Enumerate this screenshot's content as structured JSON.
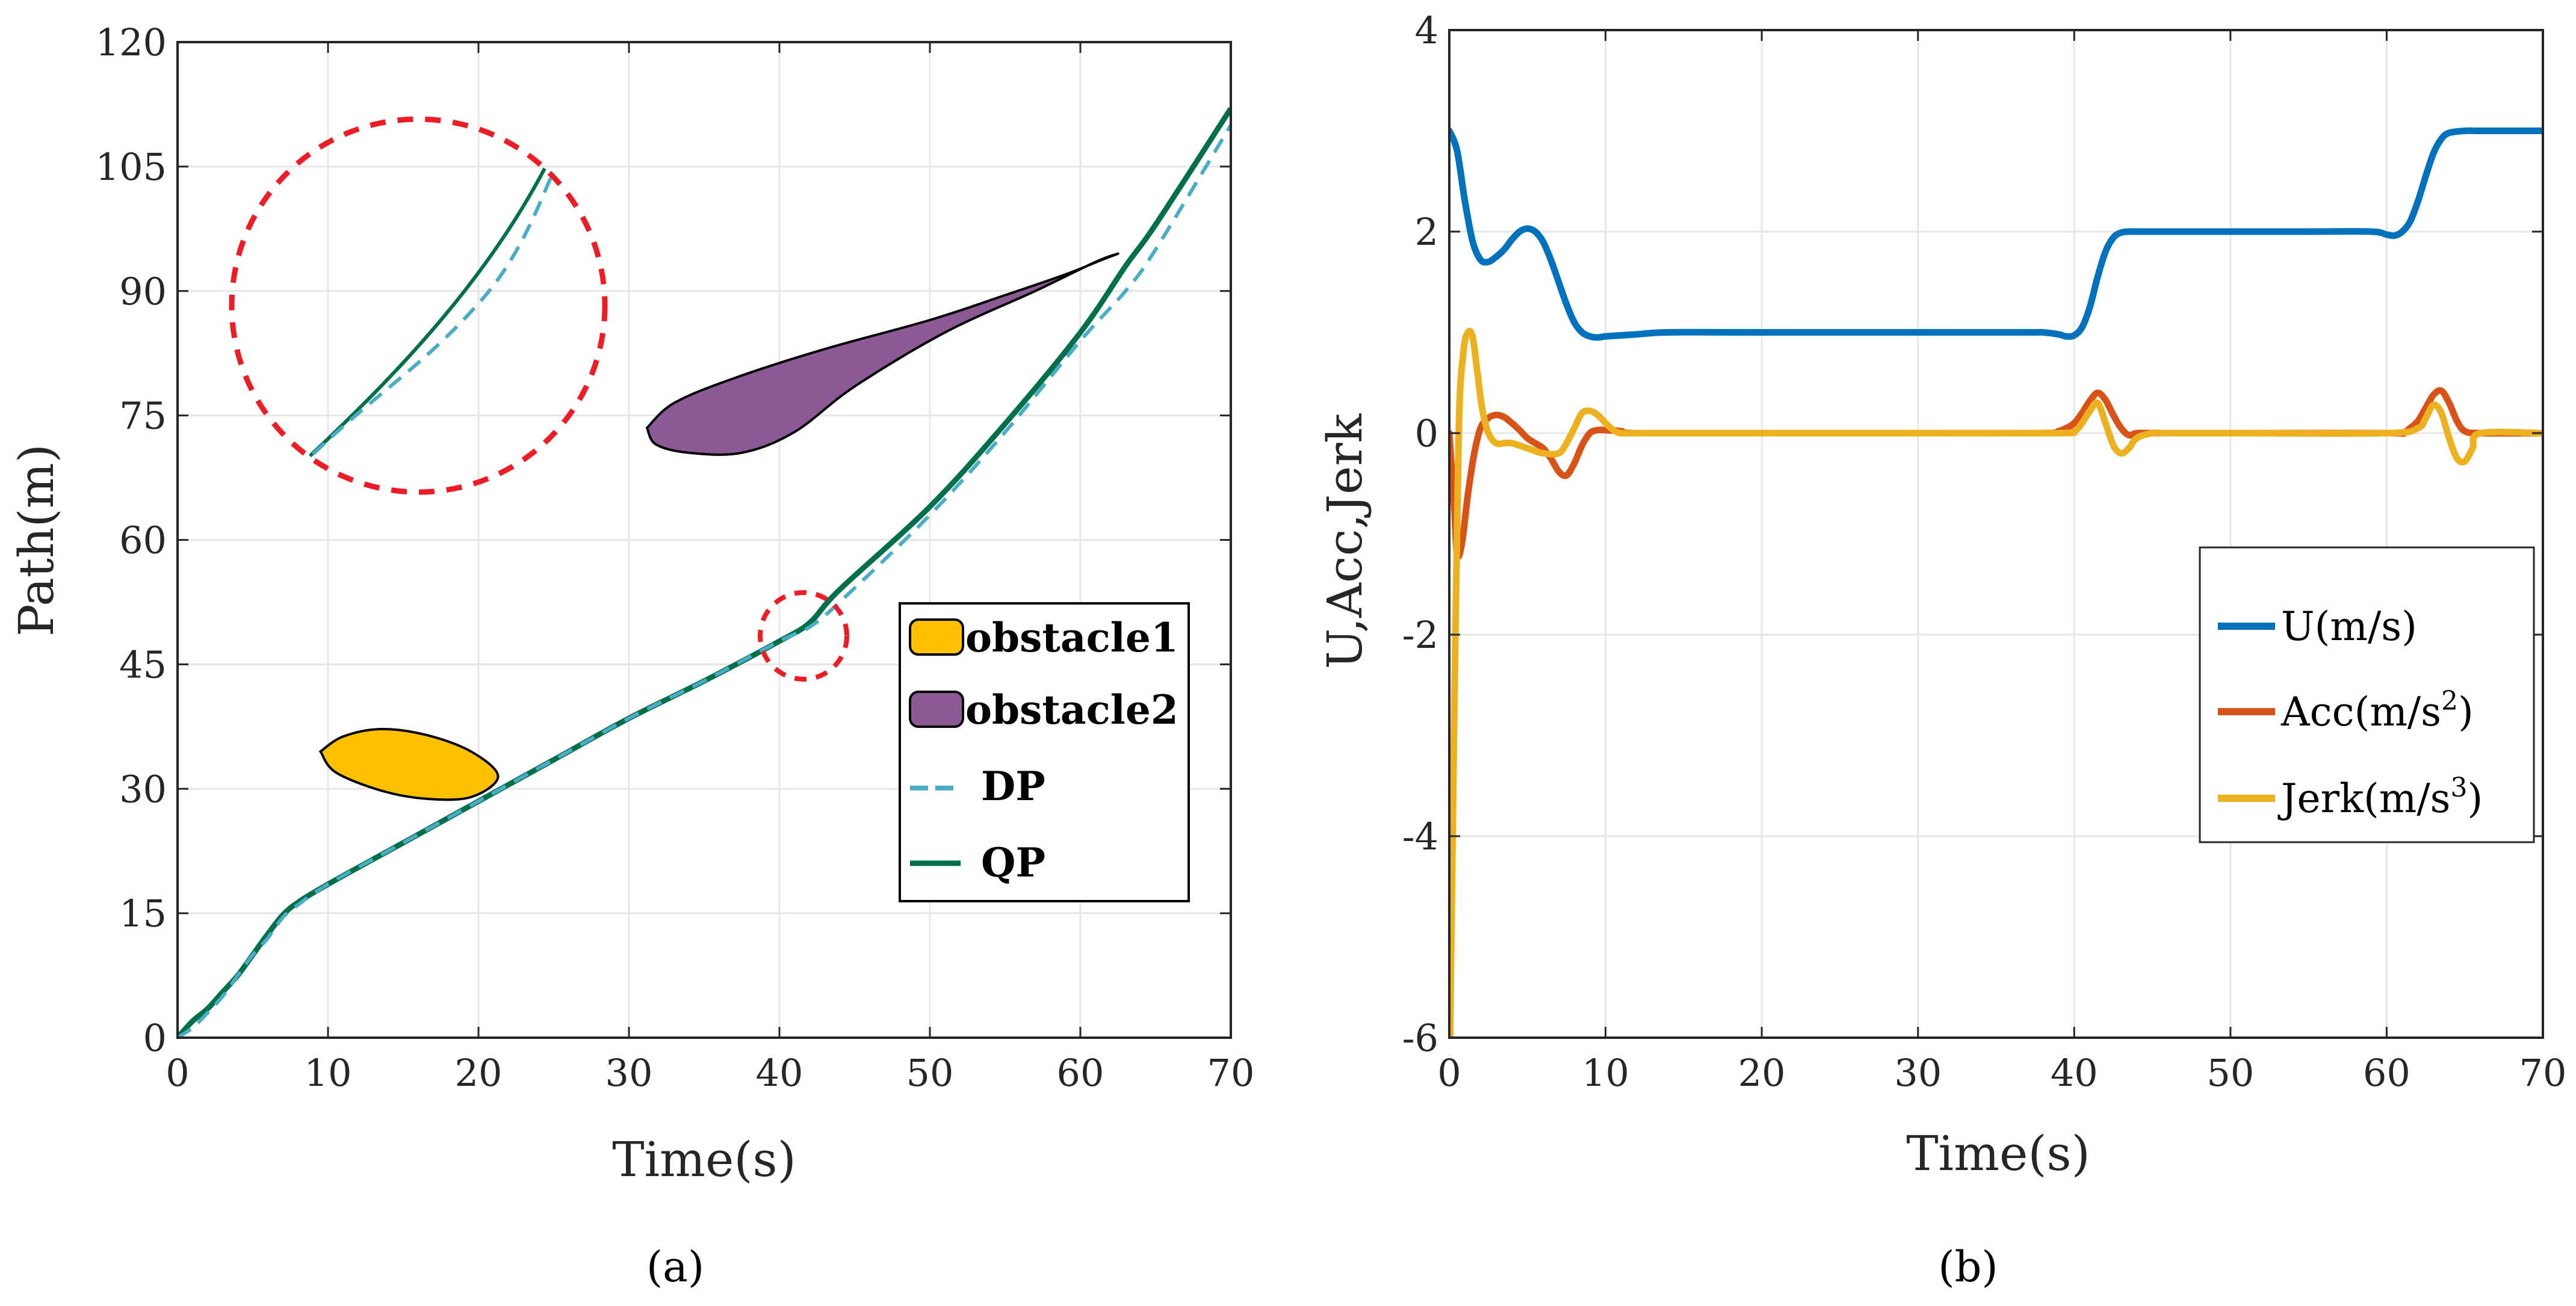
{
  "chart_data": [
    {
      "type": "line",
      "panel_label": "(a)",
      "xlabel": "Time(s)",
      "ylabel": "Path(m)",
      "xlim": [
        0,
        70
      ],
      "ylim": [
        0,
        120
      ],
      "xticks": [
        0,
        10,
        20,
        30,
        40,
        50,
        60,
        70
      ],
      "yticks": [
        0,
        15,
        30,
        45,
        60,
        75,
        90,
        105,
        120
      ],
      "grid": true,
      "legend_position": "bottom-right",
      "obstacles": [
        {
          "name": "obstacle1",
          "color": "#FFC000",
          "outline": [
            [
              9.5,
              34.5
            ],
            [
              11,
              36.3
            ],
            [
              13.5,
              37.2
            ],
            [
              16.5,
              36.5
            ],
            [
              19.5,
              34.5
            ],
            [
              21.3,
              31.5
            ],
            [
              19.5,
              29
            ],
            [
              16.5,
              28.8
            ],
            [
              13.5,
              29.8
            ],
            [
              10.5,
              32
            ]
          ]
        },
        {
          "name": "obstacle2",
          "color": "#8B5A96",
          "outline": [
            [
              31.2,
              73.5
            ],
            [
              33,
              76.5
            ],
            [
              37,
              79.5
            ],
            [
              43,
              83
            ],
            [
              50,
              86.5
            ],
            [
              55,
              89.5
            ],
            [
              59,
              92
            ],
            [
              61.5,
              93.8
            ],
            [
              62.5,
              94.5
            ],
            [
              61,
              93.5
            ],
            [
              57,
              90
            ],
            [
              51,
              85
            ],
            [
              45,
              78.5
            ],
            [
              41,
              73
            ],
            [
              37.5,
              70.5
            ],
            [
              34,
              70.5
            ],
            [
              31.8,
              71.5
            ]
          ]
        }
      ],
      "series": [
        {
          "name": "DP",
          "color": "#4BACC6",
          "style": "dashed",
          "x": [
            0,
            1,
            2,
            3,
            4,
            5,
            6,
            7,
            8,
            10,
            15,
            20,
            25,
            30,
            35,
            40,
            42,
            44,
            50,
            55,
            60,
            63,
            65,
            70
          ],
          "y": [
            0,
            1.2,
            3,
            5,
            7.5,
            10,
            12,
            14.5,
            16,
            18.5,
            23.5,
            28.5,
            33.5,
            38.5,
            43,
            47.8,
            49.5,
            52.5,
            63,
            73,
            84,
            90,
            95,
            110
          ]
        },
        {
          "name": "QP",
          "color": "#00704A",
          "style": "solid",
          "x": [
            0,
            1,
            2,
            3,
            4,
            5,
            6,
            7,
            8,
            10,
            15,
            20,
            25,
            30,
            35,
            40,
            42,
            44,
            50,
            55,
            60,
            63,
            65,
            70
          ],
          "y": [
            0,
            2,
            3.5,
            5.5,
            7.5,
            10,
            12.5,
            14.8,
            16.3,
            18.5,
            23.5,
            28.5,
            33.5,
            38.5,
            43,
            47.8,
            50,
            54,
            64,
            74,
            85,
            93,
            98,
            112
          ]
        }
      ],
      "inset": {
        "type": "zoom-circle",
        "series": [
          "QP",
          "DP"
        ]
      }
    },
    {
      "type": "line",
      "panel_label": "(b)",
      "xlabel": "Time(s)",
      "ylabel": "U,Acc,Jerk",
      "xlim": [
        0,
        70
      ],
      "ylim": [
        -6,
        4
      ],
      "xticks": [
        0,
        10,
        20,
        30,
        40,
        50,
        60,
        70
      ],
      "yticks": [
        -6,
        -4,
        -2,
        0,
        2,
        4
      ],
      "grid": true,
      "legend_position": "right",
      "series": [
        {
          "name": "U(m/s)",
          "color": "#0072BD",
          "x": [
            0,
            0.5,
            1,
            1.5,
            2,
            2.5,
            3,
            3.5,
            4,
            4.5,
            5,
            5.5,
            6,
            6.5,
            7,
            7.5,
            8,
            8.5,
            9,
            9.5,
            10,
            11,
            12,
            14,
            20,
            30,
            37,
            38,
            39,
            39.5,
            40,
            40.5,
            41,
            41.5,
            42,
            42.5,
            43,
            43.5,
            44,
            45,
            50,
            55,
            59,
            60,
            60.5,
            61,
            61.5,
            62,
            62.5,
            63,
            63.5,
            64,
            65,
            66,
            68,
            70
          ],
          "y": [
            3,
            2.8,
            2.3,
            1.9,
            1.72,
            1.7,
            1.75,
            1.82,
            1.92,
            2.0,
            2.03,
            2.0,
            1.9,
            1.72,
            1.5,
            1.28,
            1.1,
            1.0,
            0.96,
            0.95,
            0.96,
            0.97,
            0.98,
            1.0,
            1.0,
            1.0,
            1.0,
            1.0,
            0.98,
            0.96,
            0.97,
            1.05,
            1.25,
            1.55,
            1.8,
            1.94,
            1.99,
            2.0,
            2.0,
            2.0,
            2.0,
            2.0,
            2.0,
            1.97,
            1.96,
            2.0,
            2.1,
            2.3,
            2.55,
            2.78,
            2.92,
            2.98,
            3.0,
            3.0,
            3.0,
            3.0
          ]
        },
        {
          "name": "Acc(m/s^2)",
          "name_main": "Acc(m/s",
          "name_sup": "2",
          "name_tail": ")",
          "color": "#D95319",
          "x": [
            0,
            0.3,
            0.5,
            0.8,
            1.2,
            1.6,
            2,
            2.5,
            3,
            3.5,
            4,
            4.5,
            5,
            5.5,
            6,
            6.5,
            7,
            7.5,
            8,
            8.5,
            9,
            9.5,
            10,
            11,
            12,
            20,
            30,
            38,
            39,
            39.5,
            40,
            40.5,
            41,
            41.5,
            42,
            42.5,
            43,
            43.5,
            44,
            45,
            50,
            60,
            61,
            61.5,
            62,
            62.5,
            63,
            63.5,
            64,
            64.5,
            65,
            66,
            70
          ],
          "y": [
            0,
            -0.7,
            -1.2,
            -1.1,
            -0.6,
            -0.2,
            0.05,
            0.15,
            0.18,
            0.16,
            0.1,
            0.03,
            -0.05,
            -0.1,
            -0.15,
            -0.25,
            -0.38,
            -0.42,
            -0.3,
            -0.12,
            0,
            0.03,
            0.03,
            0.02,
            0,
            0,
            0,
            0,
            0.02,
            0.05,
            0.1,
            0.2,
            0.32,
            0.4,
            0.33,
            0.18,
            0.05,
            -0.02,
            0,
            0,
            0,
            0,
            0,
            0.05,
            0.12,
            0.25,
            0.38,
            0.42,
            0.3,
            0.12,
            0.02,
            0,
            0
          ]
        },
        {
          "name": "Jerk(m/s^3)",
          "name_main": "Jerk(m/s",
          "name_sup": "3",
          "name_tail": ")",
          "color": "#EDB120",
          "x": [
            0,
            0.05,
            0.3,
            0.6,
            0.9,
            1.2,
            1.5,
            1.8,
            2.1,
            2.5,
            3,
            3.5,
            4,
            5,
            6,
            7,
            7.5,
            8,
            8.5,
            9,
            9.5,
            10,
            10.5,
            11,
            12,
            20,
            30,
            39,
            40,
            40.5,
            41,
            41.5,
            42,
            42.5,
            43,
            43.5,
            44,
            45,
            46,
            50,
            60,
            62,
            62.5,
            63,
            63.5,
            64,
            64.5,
            65,
            65.5,
            66,
            70
          ],
          "y": [
            -6,
            -6,
            -3,
            0,
            0.8,
            1.0,
            0.95,
            0.6,
            0.25,
            0,
            -0.1,
            -0.1,
            -0.1,
            -0.15,
            -0.2,
            -0.2,
            -0.1,
            0.05,
            0.2,
            0.22,
            0.18,
            0.1,
            0.03,
            0,
            0,
            0,
            0,
            0,
            0.02,
            0.1,
            0.22,
            0.3,
            0.1,
            -0.12,
            -0.2,
            -0.15,
            -0.05,
            0,
            0,
            0,
            0,
            0.05,
            0.15,
            0.28,
            0.2,
            -0.05,
            -0.25,
            -0.28,
            -0.15,
            0,
            0
          ]
        }
      ]
    }
  ]
}
